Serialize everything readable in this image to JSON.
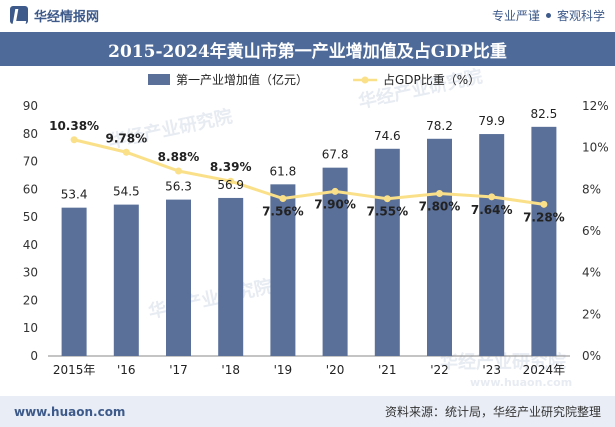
{
  "header": {
    "brand": "华经情报网",
    "tag_left": "专业严谨",
    "tag_right": "客观科学"
  },
  "title": "2015-2024年黄山市第一产业增加值及占GDP比重",
  "footer": {
    "url": "www.huaon.com",
    "source": "资料来源：统计局，华经产业研究院整理"
  },
  "watermark": "华经产业研究院",
  "watermark_url": "www.huaon.com",
  "colors": {
    "bar": "#5a7099",
    "line": "#fbe08a",
    "title_bg": "#4d6a99",
    "footer_bg": "#e9eef6"
  },
  "chart_data": {
    "type": "bar",
    "categories": [
      "2015年",
      "'16",
      "'17",
      "'18",
      "'19",
      "'20",
      "'21",
      "'22",
      "'23",
      "2024年"
    ],
    "series": [
      {
        "name": "第一产业增加值（亿元）",
        "type": "bar",
        "axis": "left",
        "values": [
          53.4,
          54.5,
          56.3,
          56.9,
          61.8,
          67.8,
          74.6,
          78.2,
          79.9,
          82.5
        ],
        "labels": [
          "53.4",
          "54.5",
          "56.3",
          "56.9",
          "61.8",
          "67.8",
          "74.6",
          "78.2",
          "79.9",
          "82.5"
        ]
      },
      {
        "name": "占GDP比重（%）",
        "type": "line",
        "axis": "right",
        "values": [
          10.38,
          9.78,
          8.88,
          8.39,
          7.56,
          7.9,
          7.55,
          7.8,
          7.64,
          7.28
        ],
        "labels": [
          "10.38%",
          "9.78%",
          "8.88%",
          "8.39%",
          "7.56%",
          "7.90%",
          "7.55%",
          "7.80%",
          "7.64%",
          "7.28%"
        ]
      }
    ],
    "y_left": {
      "range": [
        0,
        90
      ],
      "ticks": [
        0,
        10,
        20,
        30,
        40,
        50,
        60,
        70,
        80,
        90
      ],
      "tick_labels": [
        "0",
        "10",
        "20",
        "30",
        "40",
        "50",
        "60",
        "70",
        "80",
        "90"
      ]
    },
    "y_right": {
      "range": [
        0,
        12
      ],
      "ticks": [
        0,
        2,
        4,
        6,
        8,
        10,
        12
      ],
      "tick_labels": [
        "0%",
        "2%",
        "4%",
        "6%",
        "8%",
        "10%",
        "12%"
      ]
    },
    "legend_position": "top-center",
    "grid": false
  }
}
